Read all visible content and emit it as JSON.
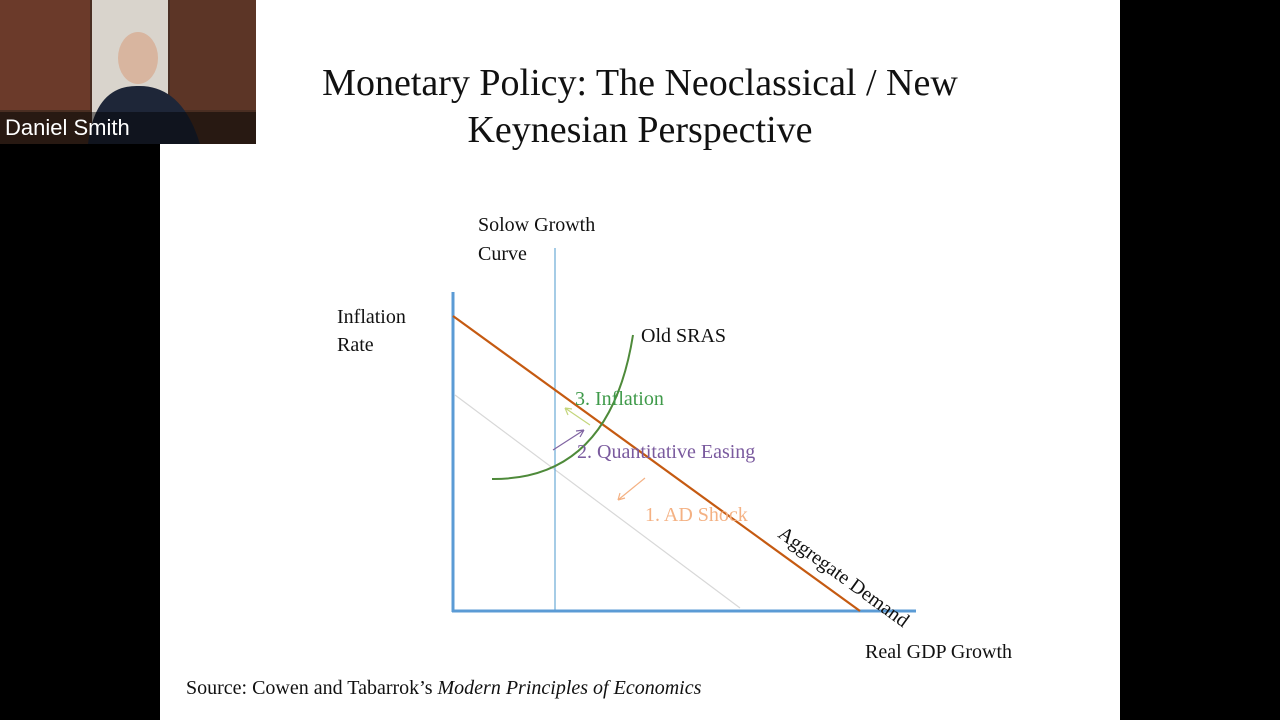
{
  "video_tile": {
    "name": "Daniel Smith"
  },
  "slide": {
    "title_lines": [
      "Monetary Policy: The Neoclassical / New",
      "Keynesian Perspective"
    ],
    "diagram": {
      "solow_label": [
        "Solow Growth",
        "Curve"
      ],
      "y_axis_label": [
        "Inflation",
        "Rate"
      ],
      "sras_label": "Old SRAS",
      "steps": [
        "3. Inflation",
        "2. Quantitative Easing",
        "1. AD Shock"
      ],
      "ad_label": "Aggregate Demand",
      "x_axis_label": "Real GDP Growth"
    },
    "source": {
      "prefix": "Source: Cowen and Tabarrok’s",
      "book": "Modern Principles of Economics"
    }
  }
}
